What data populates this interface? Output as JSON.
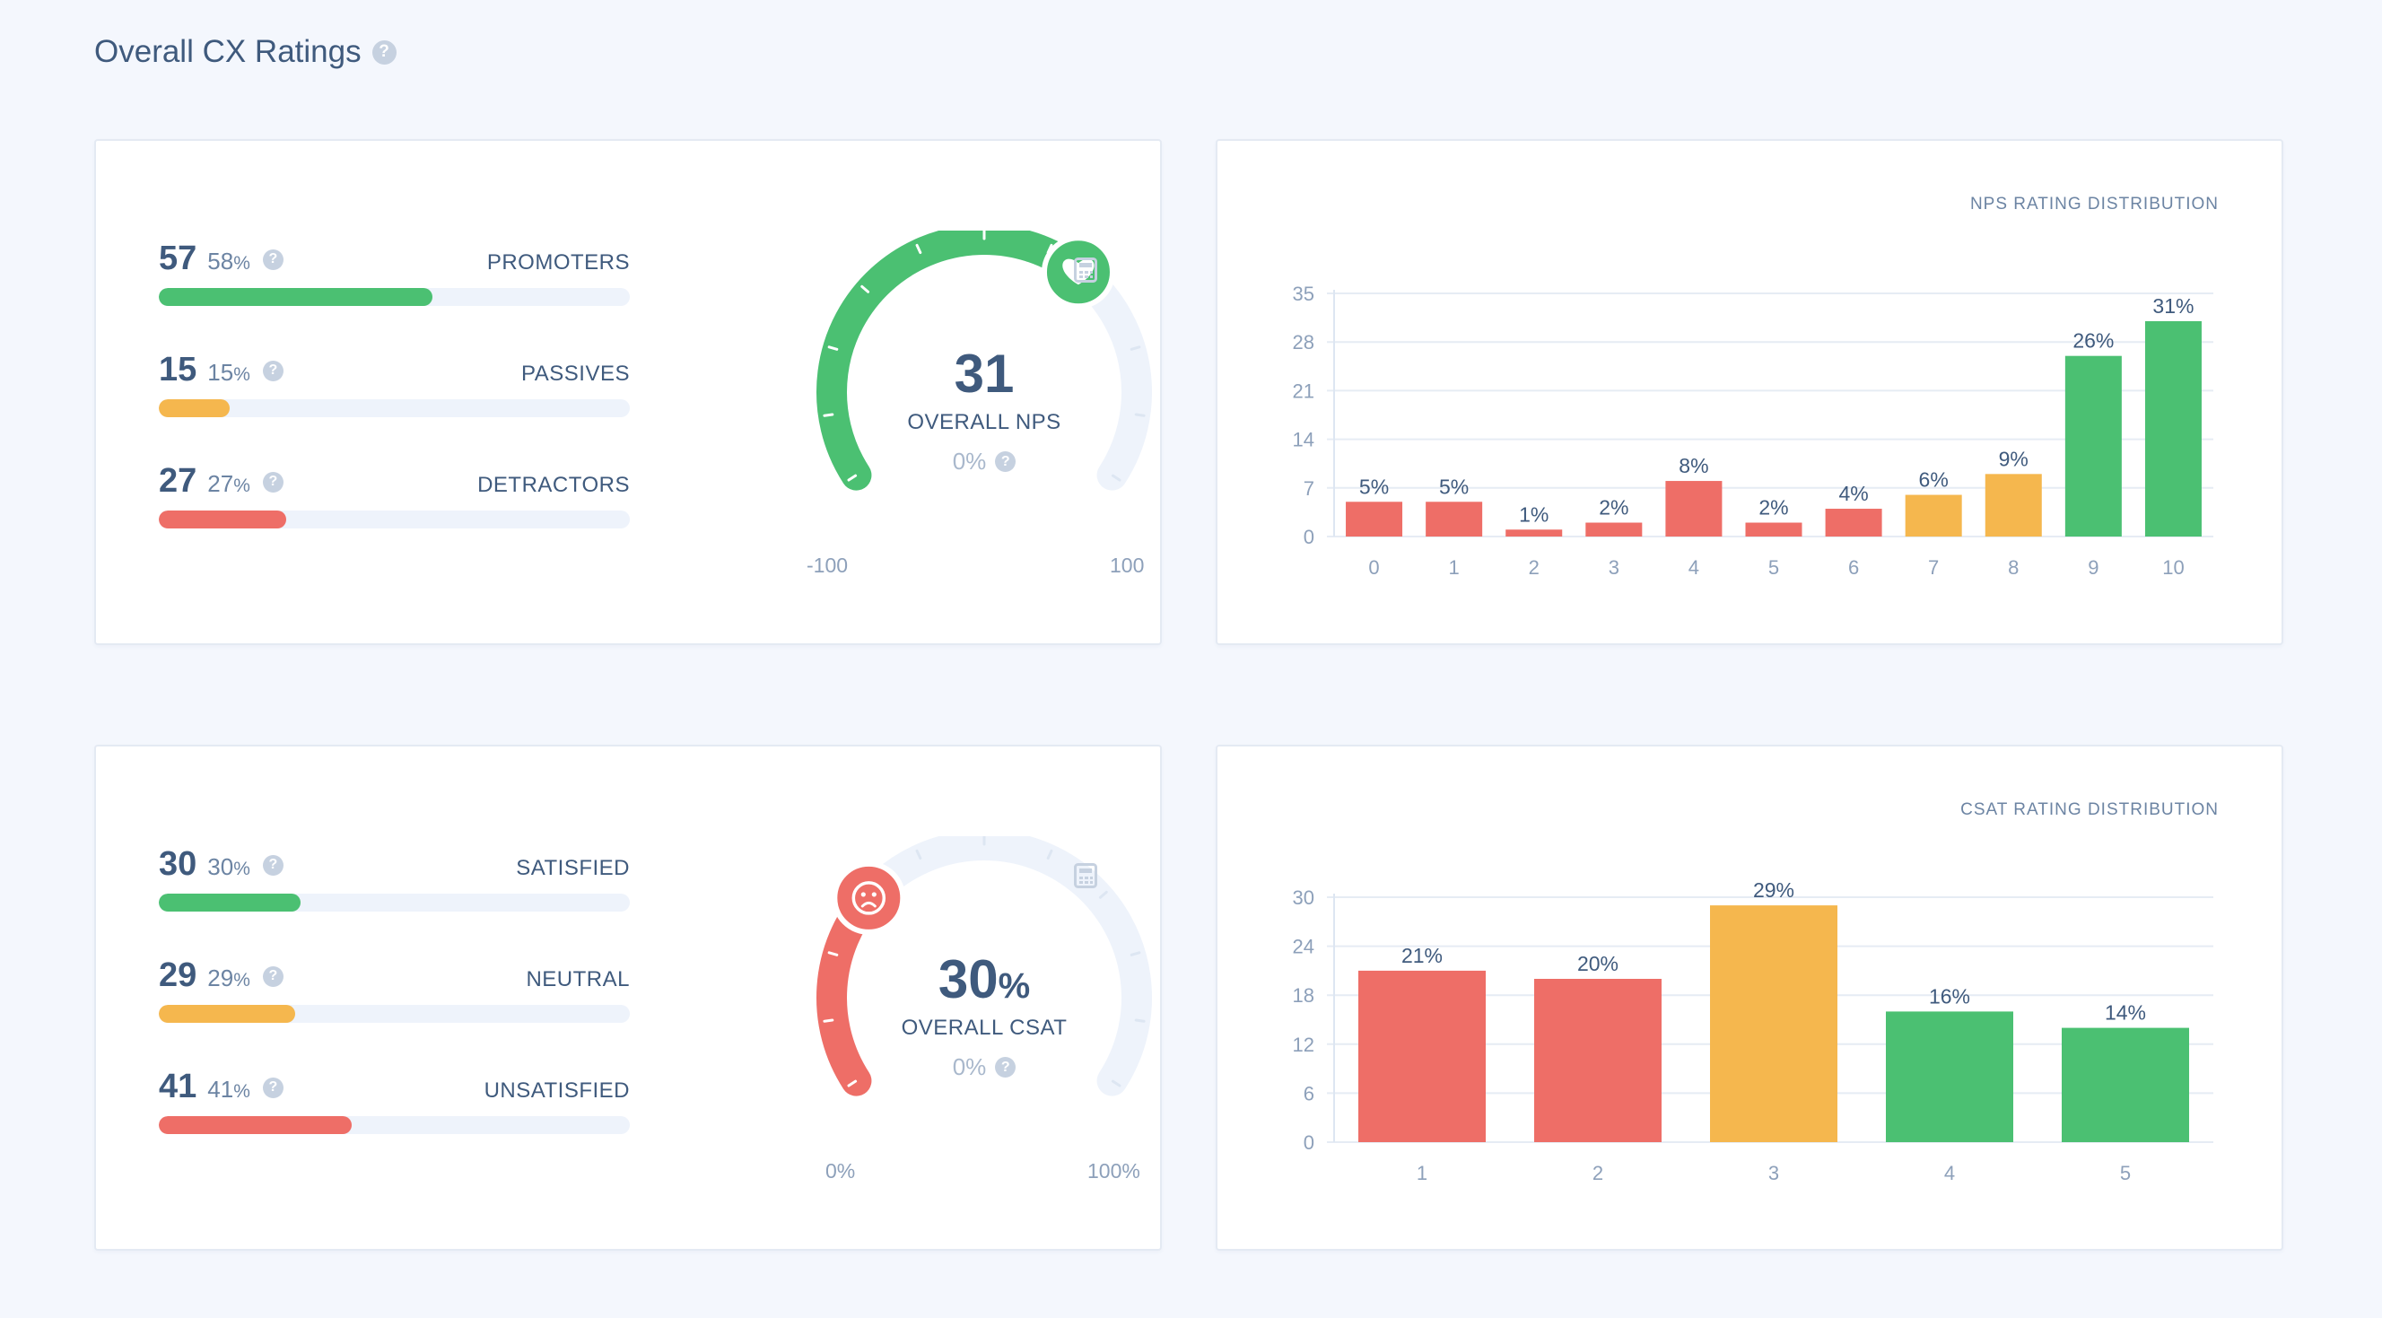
{
  "header": {
    "title": "Overall CX Ratings",
    "help_icon": "question-icon"
  },
  "colors": {
    "promoter": "#4bc072",
    "passive": "#f5b74e",
    "detractor": "#ee6e67",
    "track": "#eef3fb",
    "text": "#3f5a7d",
    "muted": "#a9b8cc"
  },
  "nps": {
    "rows": [
      {
        "count": "57",
        "pct": "58",
        "pct_sign": "%",
        "label": "PROMOTERS",
        "fraction": 0.58,
        "color": "#4bc072"
      },
      {
        "count": "15",
        "pct": "15",
        "pct_sign": "%",
        "label": "PASSIVES",
        "fraction": 0.15,
        "color": "#f5b74e"
      },
      {
        "count": "27",
        "pct": "27",
        "pct_sign": "%",
        "label": "DETRACTORS",
        "fraction": 0.27,
        "color": "#ee6e67"
      }
    ],
    "gauge": {
      "value": "31",
      "unit": "",
      "label": "OVERALL NPS",
      "sub": "0%",
      "min": "-100",
      "max": "100",
      "level_fraction": 0.655,
      "fill_color": "#4bc072",
      "marker_icon": "heart-icon"
    }
  },
  "csat": {
    "rows": [
      {
        "count": "30",
        "pct": "30",
        "pct_sign": "%",
        "label": "SATISFIED",
        "fraction": 0.3,
        "color": "#4bc072"
      },
      {
        "count": "29",
        "pct": "29",
        "pct_sign": "%",
        "label": "NEUTRAL",
        "fraction": 0.29,
        "color": "#f5b74e"
      },
      {
        "count": "41",
        "pct": "41",
        "pct_sign": "%",
        "label": "UNSATISFIED",
        "fraction": 0.41,
        "color": "#ee6e67"
      }
    ],
    "gauge": {
      "value": "30",
      "unit": "%",
      "label": "OVERALL CSAT",
      "sub": "0%",
      "min": "0%",
      "max": "100%",
      "level_fraction": 0.3,
      "fill_color": "#ee6e67",
      "marker_icon": "sad-face-icon"
    }
  },
  "chart_data": [
    {
      "type": "bar",
      "title": "NPS RATING DISTRIBUTION",
      "categories": [
        "0",
        "1",
        "2",
        "3",
        "4",
        "5",
        "6",
        "7",
        "8",
        "9",
        "10"
      ],
      "values": [
        5,
        5,
        1,
        2,
        8,
        2,
        4,
        6,
        9,
        26,
        31
      ],
      "data_labels": [
        "5%",
        "5%",
        "1%",
        "2%",
        "8%",
        "2%",
        "4%",
        "6%",
        "9%",
        "26%",
        "31%"
      ],
      "colors": [
        "#ee6e67",
        "#ee6e67",
        "#ee6e67",
        "#ee6e67",
        "#ee6e67",
        "#ee6e67",
        "#ee6e67",
        "#f5b74e",
        "#f5b74e",
        "#4bc072",
        "#4bc072"
      ],
      "yticks": [
        "0",
        "7",
        "14",
        "21",
        "28",
        "35"
      ],
      "ylim": [
        0,
        35
      ],
      "grid": true
    },
    {
      "type": "bar",
      "title": "CSAT RATING DISTRIBUTION",
      "categories": [
        "1",
        "2",
        "3",
        "4",
        "5"
      ],
      "values": [
        21,
        20,
        29,
        16,
        14
      ],
      "data_labels": [
        "21%",
        "20%",
        "29%",
        "16%",
        "14%"
      ],
      "colors": [
        "#ee6e67",
        "#ee6e67",
        "#f5b74e",
        "#4bc072",
        "#4bc072"
      ],
      "yticks": [
        "0",
        "6",
        "12",
        "18",
        "24",
        "30"
      ],
      "ylim": [
        0,
        30
      ],
      "grid": true
    }
  ]
}
